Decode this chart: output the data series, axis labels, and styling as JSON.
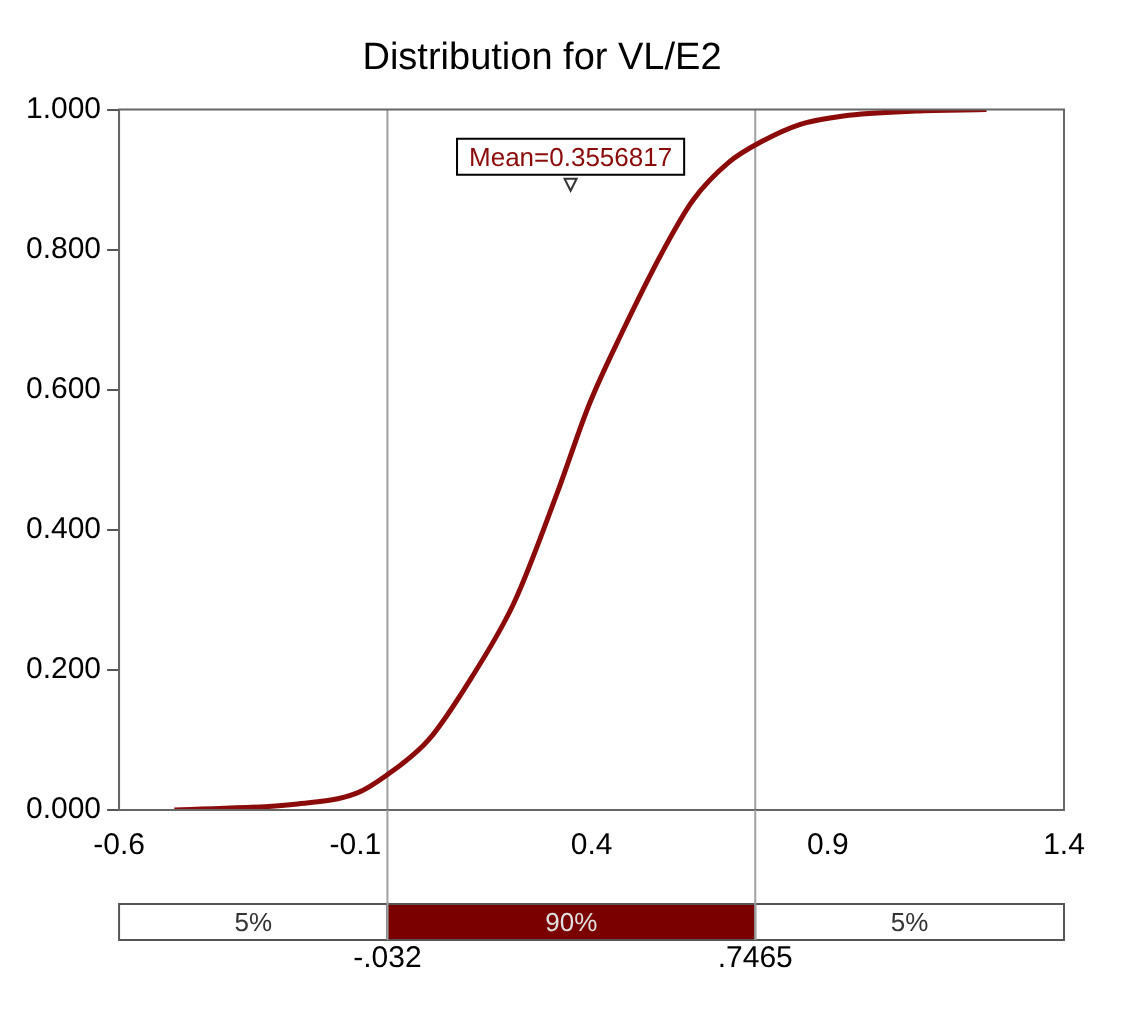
{
  "chart_data": {
    "type": "line",
    "title": "Distribution for VL/E2",
    "x": [
      -0.483,
      -0.233,
      -0.097,
      -0.033,
      0.055,
      0.145,
      0.236,
      0.327,
      0.395,
      0.464,
      0.555,
      0.615,
      0.691,
      0.759,
      0.842,
      0.933,
      1.085,
      1.236
    ],
    "values": [
      0,
      0.008,
      0.024,
      0.05,
      0.1,
      0.188,
      0.296,
      0.452,
      0.579,
      0.681,
      0.803,
      0.871,
      0.925,
      0.954,
      0.979,
      0.991,
      0.998,
      1.0
    ],
    "color": "#8b0a0a",
    "xlim": [
      -0.6,
      1.4
    ],
    "xticks": [
      -0.6,
      -0.1,
      0.4,
      0.9,
      1.4
    ],
    "ylim": [
      0,
      1
    ],
    "yticks": [
      {
        "value": 0,
        "label": "0.000"
      },
      {
        "value": 0.2,
        "label": "0.200"
      },
      {
        "value": 0.4,
        "label": "0.400"
      },
      {
        "value": 0.6,
        "label": "0.600"
      },
      {
        "value": 0.8,
        "label": "0.800"
      },
      {
        "value": 1,
        "label": "1.000"
      }
    ],
    "grid": false,
    "legend": false,
    "marker": "none",
    "line_style": "solid",
    "ref_lines": [
      {
        "axis": "x",
        "value": -0.032,
        "label": "-.032",
        "color": "#a0a0a0"
      },
      {
        "axis": "x",
        "value": 0.7465,
        "label": ".7465",
        "color": "#a0a0a0"
      }
    ],
    "annotations": [
      {
        "text": "Mean=0.3556817",
        "x": 0.3556817,
        "y": 0.89
      },
      "5%",
      "90%",
      "5%"
    ]
  }
}
